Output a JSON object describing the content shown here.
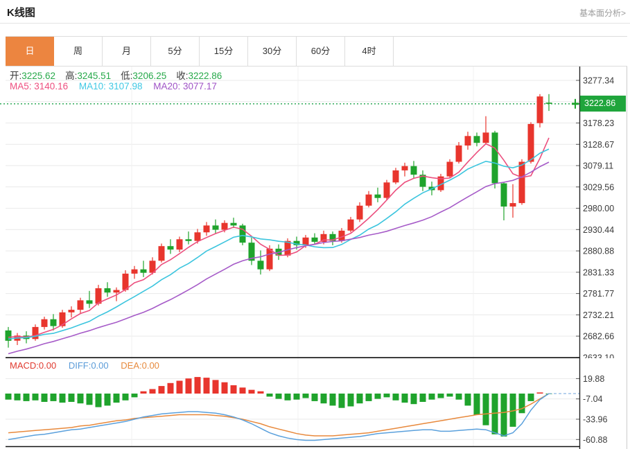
{
  "header": {
    "title": "K线图",
    "link": "基本面分析>"
  },
  "tabs": {
    "items": [
      {
        "label": "日",
        "active": true
      },
      {
        "label": "周",
        "active": false
      },
      {
        "label": "月",
        "active": false
      },
      {
        "label": "5分",
        "active": false
      },
      {
        "label": "15分",
        "active": false
      },
      {
        "label": "30分",
        "active": false
      },
      {
        "label": "60分",
        "active": false
      },
      {
        "label": "4时",
        "active": false
      }
    ]
  },
  "info": {
    "ohlc": [
      {
        "label": "开:",
        "value": "3225.62"
      },
      {
        "label": "高:",
        "value": "3245.51"
      },
      {
        "label": "低:",
        "value": "3206.25"
      },
      {
        "label": "收:",
        "value": "3222.86"
      }
    ],
    "ma": [
      {
        "label": "MA5:",
        "value": "3140.16"
      },
      {
        "label": "MA10:",
        "value": "3107.98"
      },
      {
        "label": "MA20:",
        "value": "3077.17"
      }
    ],
    "macd": [
      {
        "label": "MACD:",
        "value": "0.00"
      },
      {
        "label": "DIFF:",
        "value": "0.00"
      },
      {
        "label": "DEA:",
        "value": "0.00"
      }
    ]
  },
  "colors": {
    "up": "#e8352d",
    "down": "#1fa32c",
    "ma5": "#ec4f7e",
    "ma10": "#3cc5de",
    "ma20": "#a65bc8",
    "price_line": "#3db065",
    "price_tag": "#1fa53c",
    "diff_line": "#5aa0dc",
    "dea_line": "#e8893c",
    "axis": "#222222",
    "grid": "#e9e9e9",
    "vgrid": "#f1f1f1",
    "tick_text": "#3a3a3a",
    "zero_dash": "#9fc3e8"
  },
  "chart_data": [
    {
      "type": "candlestick",
      "panel": "main",
      "ylim": [
        2631.35,
        3309.55
      ],
      "grid_values": [
        3277.34,
        3227.78,
        3178.23,
        3128.67,
        3079.11,
        3029.56,
        2980.0,
        2930.44,
        2880.88,
        2831.33,
        2781.77,
        2732.21,
        2682.66,
        2633.1
      ],
      "y_ticks": [
        "3277.34",
        "3178.23",
        "3128.67",
        "3079.11",
        "3029.56",
        "2980.00",
        "2930.44",
        "2880.88",
        "2831.33",
        "2781.77",
        "2732.21",
        "2682.66",
        "2633.10"
      ],
      "current_price": 3222.86,
      "current_price_label": "3222.86",
      "ma_periods": [
        5,
        10,
        20
      ],
      "ma_seed_history": [
        2560,
        2568,
        2576,
        2584,
        2592,
        2602,
        2612,
        2622,
        2630,
        2640,
        2650,
        2660,
        2668,
        2672,
        2678,
        2682,
        2676,
        2680,
        2688,
        2684
      ],
      "candles": [
        [
          2696,
          2704,
          2656,
          2672
        ],
        [
          2672,
          2690,
          2662,
          2684
        ],
        [
          2684,
          2694,
          2666,
          2676
        ],
        [
          2676,
          2710,
          2672,
          2704
        ],
        [
          2704,
          2728,
          2698,
          2722
        ],
        [
          2722,
          2734,
          2696,
          2706
        ],
        [
          2706,
          2744,
          2702,
          2738
        ],
        [
          2738,
          2752,
          2726,
          2744
        ],
        [
          2744,
          2772,
          2736,
          2766
        ],
        [
          2766,
          2788,
          2748,
          2758
        ],
        [
          2758,
          2802,
          2754,
          2794
        ],
        [
          2794,
          2808,
          2774,
          2784
        ],
        [
          2784,
          2796,
          2764,
          2790
        ],
        [
          2790,
          2836,
          2786,
          2828
        ],
        [
          2828,
          2846,
          2816,
          2838
        ],
        [
          2838,
          2858,
          2820,
          2830
        ],
        [
          2830,
          2866,
          2826,
          2858
        ],
        [
          2858,
          2898,
          2854,
          2892
        ],
        [
          2892,
          2908,
          2874,
          2884
        ],
        [
          2884,
          2914,
          2878,
          2908
        ],
        [
          2908,
          2926,
          2896,
          2904
        ],
        [
          2904,
          2932,
          2898,
          2924
        ],
        [
          2924,
          2948,
          2916,
          2940
        ],
        [
          2940,
          2954,
          2922,
          2930
        ],
        [
          2930,
          2952,
          2924,
          2946
        ],
        [
          2946,
          2958,
          2934,
          2940
        ],
        [
          2940,
          2944,
          2894,
          2900
        ],
        [
          2900,
          2912,
          2848,
          2858
        ],
        [
          2858,
          2882,
          2826,
          2838
        ],
        [
          2838,
          2894,
          2834,
          2886
        ],
        [
          2886,
          2896,
          2860,
          2870
        ],
        [
          2870,
          2910,
          2866,
          2904
        ],
        [
          2904,
          2914,
          2884,
          2894
        ],
        [
          2894,
          2918,
          2888,
          2912
        ],
        [
          2912,
          2922,
          2896,
          2902
        ],
        [
          2902,
          2928,
          2896,
          2920
        ],
        [
          2920,
          2926,
          2894,
          2904
        ],
        [
          2904,
          2934,
          2900,
          2928
        ],
        [
          2928,
          2960,
          2924,
          2954
        ],
        [
          2954,
          2994,
          2948,
          2986
        ],
        [
          2986,
          3020,
          2982,
          3012
        ],
        [
          3012,
          3028,
          2994,
          3004
        ],
        [
          3004,
          3046,
          3000,
          3040
        ],
        [
          3040,
          3074,
          3036,
          3068
        ],
        [
          3068,
          3086,
          3054,
          3078
        ],
        [
          3078,
          3090,
          3050,
          3058
        ],
        [
          3058,
          3068,
          3020,
          3030
        ],
        [
          3030,
          3042,
          3010,
          3022
        ],
        [
          3022,
          3060,
          3018,
          3054
        ],
        [
          3054,
          3094,
          3050,
          3088
        ],
        [
          3088,
          3134,
          3084,
          3126
        ],
        [
          3126,
          3158,
          3116,
          3148
        ],
        [
          3148,
          3156,
          3124,
          3132
        ],
        [
          3132,
          3194,
          3128,
          3156
        ],
        [
          3156,
          3160,
          3026,
          3038
        ],
        [
          3038,
          3040,
          2952,
          2984
        ],
        [
          2984,
          3036,
          2958,
          2992
        ],
        [
          2992,
          3094,
          2988,
          3088
        ],
        [
          3088,
          3180,
          3084,
          3176
        ],
        [
          3178,
          3245.51,
          3168,
          3240
        ],
        [
          3225.62,
          3245.51,
          3206.25,
          3222.86
        ]
      ]
    },
    {
      "type": "macd",
      "panel": "secondary",
      "ylim": [
        46.9,
        -70.7
      ],
      "y_ticks": [
        "19.88",
        "-7.04",
        "-33.96",
        "-60.88"
      ],
      "zero": 0,
      "histogram": [
        -8,
        -9,
        -10,
        -9,
        -11,
        -10,
        -12,
        -11,
        -13,
        -15,
        -18,
        -16,
        -12,
        -9,
        -5,
        3,
        6,
        10,
        14,
        17,
        20,
        22,
        21,
        18,
        15,
        11,
        8,
        5,
        3,
        -4,
        -7,
        -9,
        -8,
        -6,
        -10,
        -13,
        -16,
        -19,
        -17,
        -13,
        -10,
        -7,
        -5,
        -9,
        -12,
        -14,
        -11,
        -8,
        -6,
        -4,
        -8,
        -16,
        -28,
        -42,
        -54,
        -57,
        -44,
        -26,
        -10,
        1.5,
        0
      ],
      "diff": [
        -61,
        -59,
        -57,
        -55,
        -54,
        -52,
        -50,
        -48,
        -47,
        -45,
        -43,
        -41,
        -39,
        -37,
        -34,
        -31,
        -29,
        -27,
        -26,
        -25,
        -24,
        -24,
        -25,
        -26,
        -28,
        -31,
        -35,
        -40,
        -46,
        -52,
        -56,
        -59,
        -61,
        -62,
        -62,
        -61,
        -60,
        -59,
        -58,
        -57,
        -55,
        -53,
        -52,
        -51,
        -50,
        -49,
        -48,
        -48,
        -50,
        -50,
        -49,
        -48,
        -47,
        -48,
        -52,
        -56,
        -52,
        -40,
        -22,
        -8,
        0
      ],
      "dea": [
        -52,
        -51,
        -50,
        -49,
        -48,
        -47,
        -46,
        -45,
        -43,
        -42,
        -40,
        -38,
        -36,
        -35,
        -33,
        -32,
        -31,
        -30,
        -29,
        -28,
        -28,
        -28,
        -28,
        -29,
        -30,
        -32,
        -34,
        -37,
        -40,
        -44,
        -47,
        -50,
        -53,
        -55,
        -56,
        -56,
        -56,
        -55,
        -54,
        -53,
        -52,
        -50,
        -48,
        -46,
        -44,
        -42,
        -40,
        -38,
        -36,
        -34,
        -32,
        -30,
        -28,
        -27,
        -26,
        -25,
        -23,
        -20,
        -14,
        -7,
        0
      ]
    }
  ]
}
